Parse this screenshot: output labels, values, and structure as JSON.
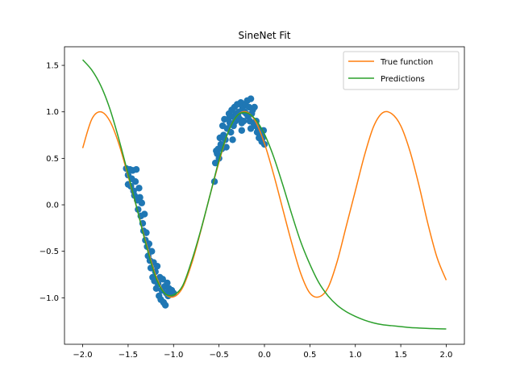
{
  "chart_data": {
    "type": "line",
    "title": "SineNet Fit",
    "xlabel": "",
    "ylabel": "",
    "xlim": [
      -2.2,
      2.2
    ],
    "ylim": [
      -1.5,
      1.7
    ],
    "x_ticks": [
      -2.0,
      -1.5,
      -1.0,
      -0.5,
      0.0,
      0.5,
      1.0,
      1.5,
      2.0
    ],
    "x_tick_labels": [
      "−2.0",
      "−1.5",
      "−1.0",
      "−0.5",
      "0.0",
      "0.5",
      "1.0",
      "1.5",
      "2.0"
    ],
    "y_ticks": [
      -1.0,
      -0.5,
      0.0,
      0.5,
      1.0,
      1.5
    ],
    "y_tick_labels": [
      "−1.0",
      "−0.5",
      "0.0",
      "0.5",
      "1.0",
      "1.5"
    ],
    "grid": false,
    "legend_position": "top-right",
    "colors": {
      "scatter": "#1f77b4",
      "true_function": "#ff7f0e",
      "predictions": "#2ca02c"
    },
    "series": [
      {
        "name": "True function",
        "kind": "line",
        "x": [
          -2.0,
          -1.9,
          -1.8,
          -1.7,
          -1.6,
          -1.5,
          -1.4,
          -1.3,
          -1.2,
          -1.1,
          -1.0,
          -0.9,
          -0.8,
          -0.7,
          -0.6,
          -0.5,
          -0.4,
          -0.3,
          -0.2,
          -0.1,
          0.0,
          0.1,
          0.2,
          0.3,
          0.4,
          0.5,
          0.6,
          0.7,
          0.8,
          0.9,
          1.0,
          1.1,
          1.2,
          1.3,
          1.4,
          1.5,
          1.6,
          1.7,
          1.8,
          1.9,
          2.0
        ],
        "y": [
          0.61,
          0.92,
          1.0,
          0.9,
          0.65,
          0.31,
          -0.05,
          -0.42,
          -0.75,
          -0.95,
          -0.99,
          -0.89,
          -0.63,
          -0.28,
          0.1,
          0.46,
          0.78,
          0.96,
          1.0,
          0.9,
          0.66,
          0.33,
          -0.04,
          -0.41,
          -0.74,
          -0.95,
          -0.99,
          -0.89,
          -0.61,
          -0.23,
          0.15,
          0.53,
          0.84,
          0.99,
          0.98,
          0.85,
          0.58,
          0.21,
          -0.21,
          -0.57,
          -0.81
        ]
      },
      {
        "name": "Predictions",
        "kind": "line",
        "x": [
          -2.0,
          -1.9,
          -1.8,
          -1.7,
          -1.6,
          -1.5,
          -1.4,
          -1.3,
          -1.2,
          -1.1,
          -1.0,
          -0.9,
          -0.8,
          -0.7,
          -0.6,
          -0.5,
          -0.4,
          -0.3,
          -0.2,
          -0.1,
          0.0,
          0.1,
          0.2,
          0.3,
          0.4,
          0.5,
          0.6,
          0.7,
          0.8,
          0.9,
          1.0,
          1.1,
          1.2,
          1.3,
          1.4,
          1.5,
          1.6,
          1.7,
          1.8,
          1.9,
          2.0
        ],
        "y": [
          1.56,
          1.45,
          1.28,
          1.03,
          0.7,
          0.33,
          -0.05,
          -0.44,
          -0.77,
          -0.95,
          -0.97,
          -0.87,
          -0.6,
          -0.27,
          0.1,
          0.48,
          0.78,
          0.96,
          0.99,
          0.92,
          0.76,
          0.52,
          0.22,
          -0.1,
          -0.4,
          -0.64,
          -0.84,
          -0.98,
          -1.08,
          -1.15,
          -1.2,
          -1.24,
          -1.27,
          -1.29,
          -1.3,
          -1.31,
          -1.32,
          -1.325,
          -1.33,
          -1.333,
          -1.335
        ]
      },
      {
        "name": "",
        "kind": "scatter",
        "x": [
          -1.52,
          -1.5,
          -1.5,
          -1.48,
          -1.47,
          -1.46,
          -1.45,
          -1.44,
          -1.43,
          -1.42,
          -1.41,
          -1.4,
          -1.39,
          -1.38,
          -1.37,
          -1.36,
          -1.35,
          -1.34,
          -1.33,
          -1.32,
          -1.31,
          -1.3,
          -1.29,
          -1.28,
          -1.27,
          -1.26,
          -1.25,
          -1.24,
          -1.23,
          -1.22,
          -1.21,
          -1.2,
          -1.19,
          -1.18,
          -1.17,
          -1.16,
          -1.15,
          -1.14,
          -1.13,
          -1.12,
          -1.11,
          -1.1,
          -1.09,
          -1.08,
          -1.07,
          -1.06,
          -1.05,
          -1.04,
          -1.03,
          -1.02,
          -1.01,
          -1.0,
          -0.55,
          -0.54,
          -0.53,
          -0.52,
          -0.51,
          -0.5,
          -0.49,
          -0.48,
          -0.47,
          -0.46,
          -0.45,
          -0.44,
          -0.43,
          -0.42,
          -0.41,
          -0.4,
          -0.39,
          -0.38,
          -0.37,
          -0.36,
          -0.35,
          -0.34,
          -0.33,
          -0.32,
          -0.31,
          -0.3,
          -0.29,
          -0.28,
          -0.27,
          -0.26,
          -0.25,
          -0.24,
          -0.23,
          -0.22,
          -0.21,
          -0.2,
          -0.19,
          -0.18,
          -0.17,
          -0.16,
          -0.15,
          -0.14,
          -0.13,
          -0.12,
          -0.11,
          -0.1,
          -0.09,
          -0.08,
          -0.07,
          -0.06,
          -0.05,
          -0.04,
          -0.03,
          -0.02,
          -0.01,
          0.0,
          -0.15,
          -0.35,
          -0.25,
          -0.45
        ],
        "y": [
          0.39,
          0.22,
          0.32,
          0.38,
          0.2,
          0.28,
          0.37,
          0.15,
          0.1,
          0.25,
          0.38,
          0.05,
          -0.05,
          0.18,
          0.08,
          -0.12,
          0.02,
          -0.2,
          -0.28,
          -0.1,
          -0.38,
          -0.3,
          -0.45,
          -0.55,
          -0.42,
          -0.6,
          -0.68,
          -0.5,
          -0.78,
          -0.62,
          -0.82,
          -0.72,
          -0.9,
          -0.66,
          -0.85,
          -0.98,
          -0.78,
          -1.02,
          -0.92,
          -0.8,
          -1.05,
          -0.88,
          -1.08,
          -0.95,
          -0.84,
          -0.98,
          -0.9,
          -0.92,
          -0.96,
          -0.92,
          -0.95,
          -0.95,
          0.25,
          0.45,
          0.58,
          0.55,
          0.6,
          0.5,
          0.72,
          0.65,
          0.6,
          0.85,
          0.75,
          0.92,
          0.7,
          0.62,
          0.82,
          0.92,
          0.98,
          0.88,
          0.78,
          1.02,
          0.95,
          0.85,
          1.05,
          0.9,
          0.98,
          1.08,
          0.95,
          1.0,
          0.92,
          1.1,
          0.88,
          1.05,
          0.9,
          1.0,
          1.08,
          0.98,
          1.12,
          0.95,
          1.05,
          0.9,
          1.14,
          0.98,
          1.02,
          0.88,
          1.05,
          0.85,
          0.9,
          0.78,
          0.82,
          0.72,
          0.8,
          0.75,
          0.68,
          0.72,
          0.8,
          0.65,
          0.82,
          0.7,
          0.8,
          0.72
        ]
      }
    ]
  }
}
